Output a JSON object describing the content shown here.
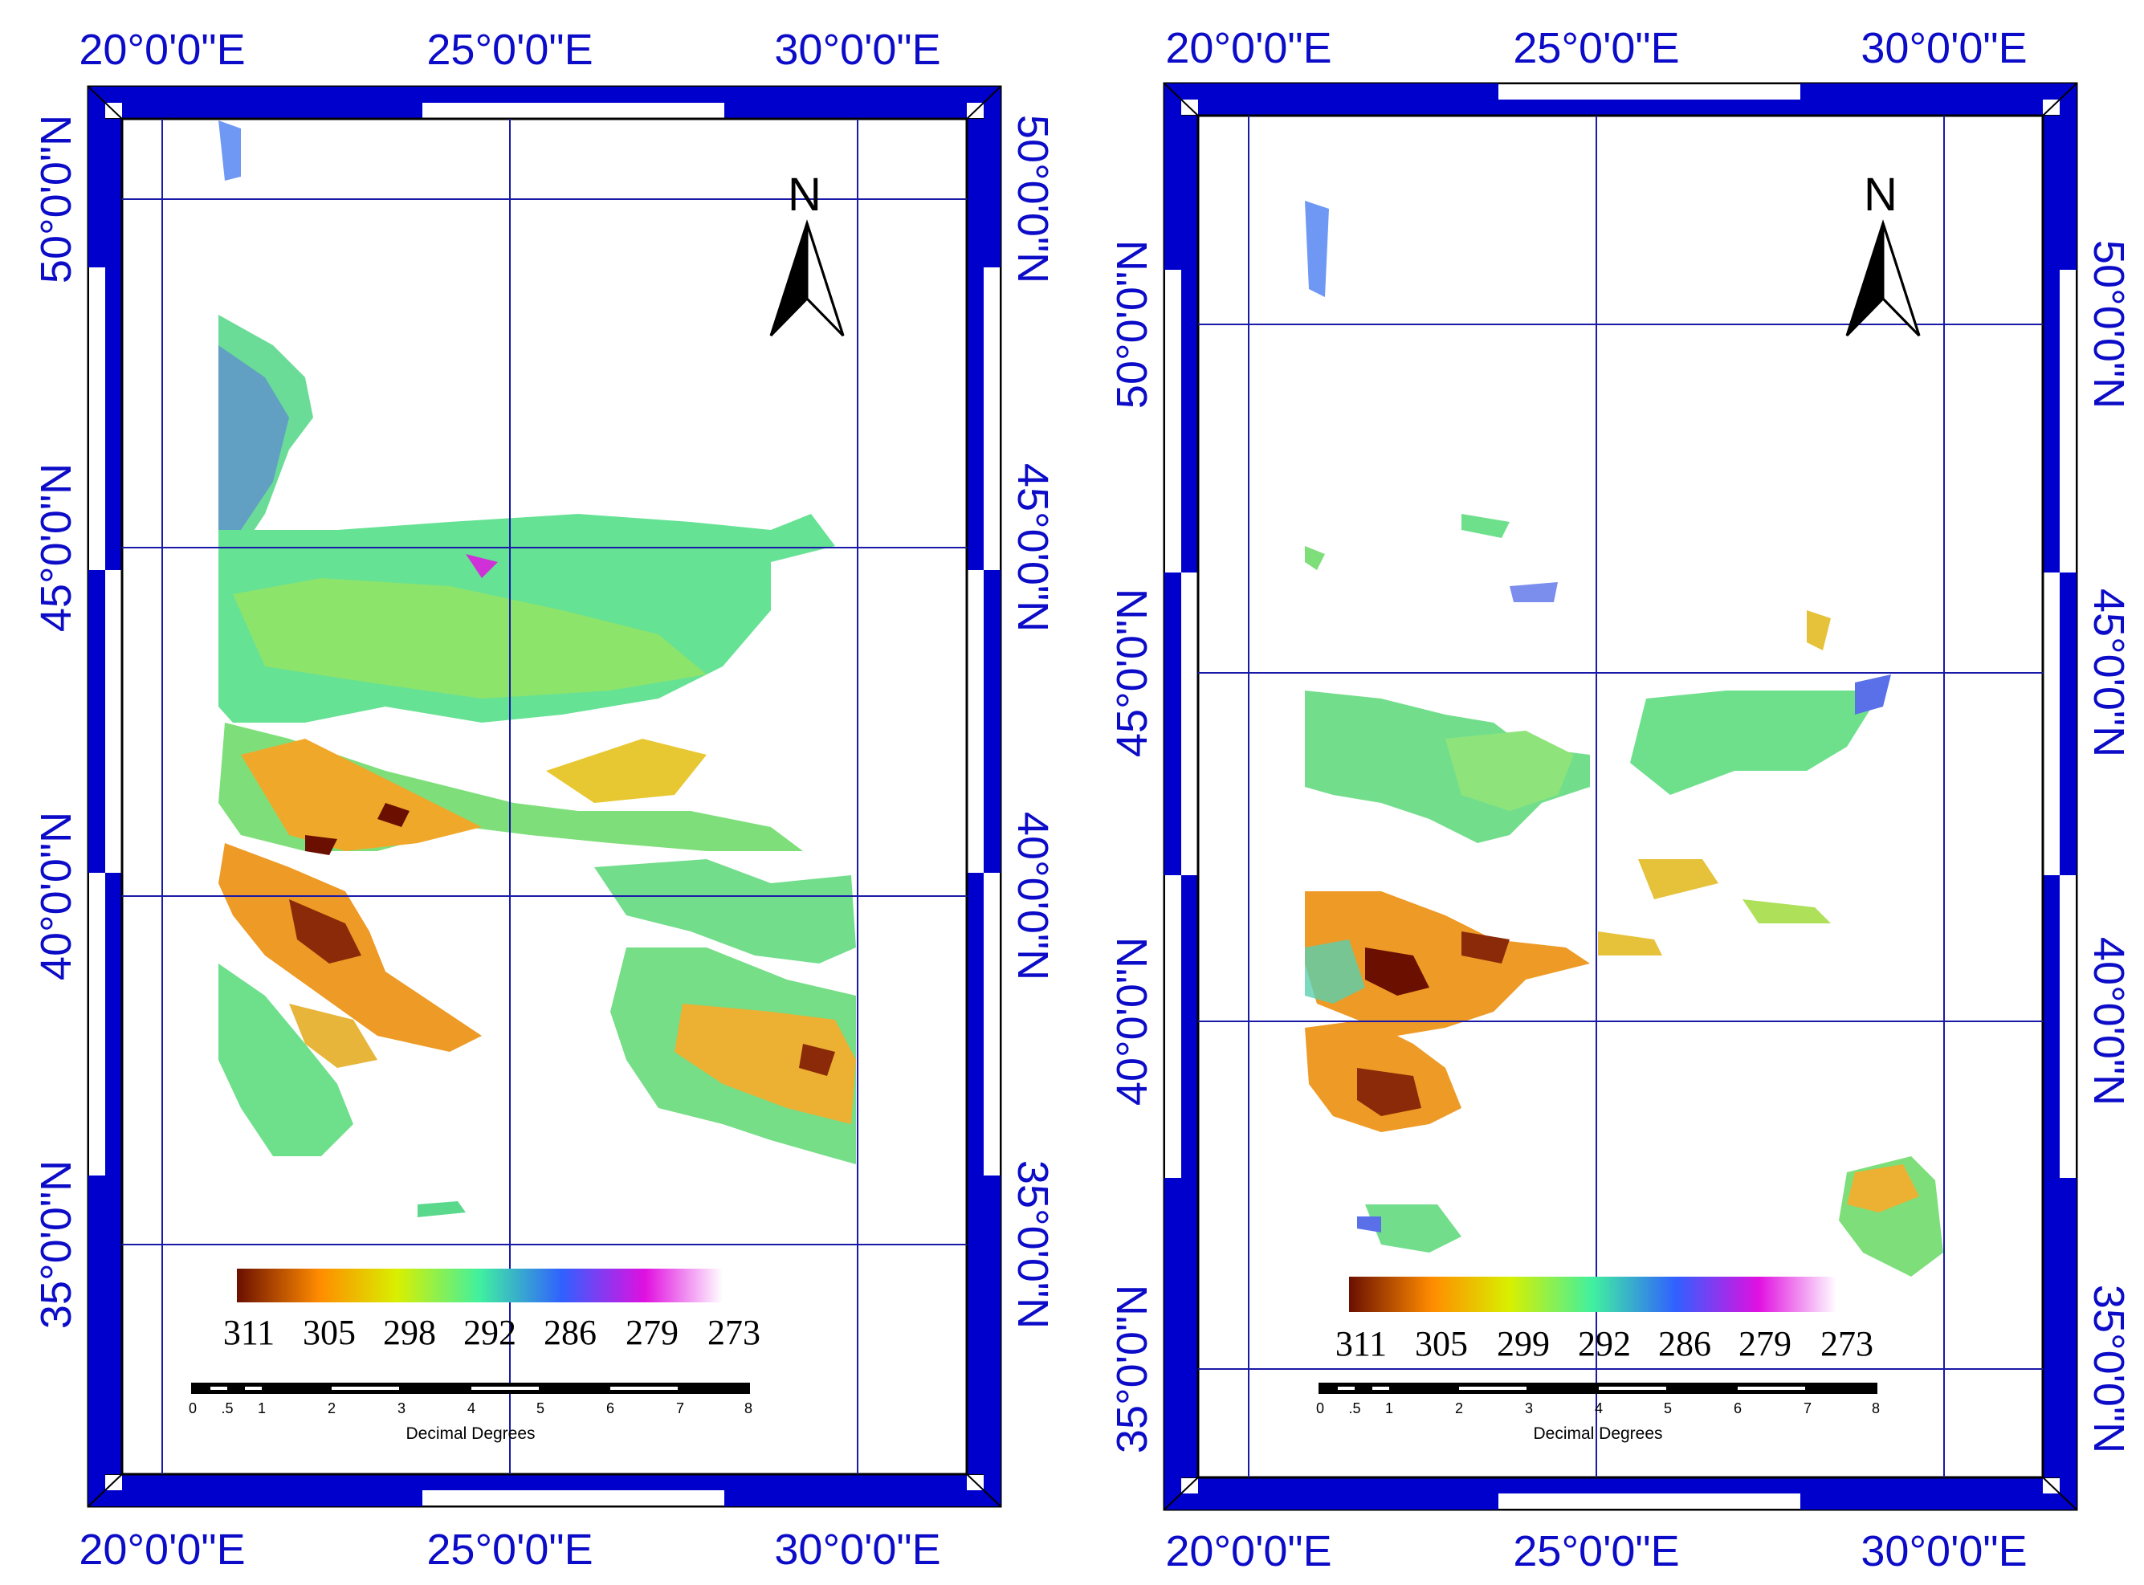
{
  "maps": [
    {
      "id": "left",
      "top_labels": [
        "20°0'0\"E",
        "25°0'0\"E",
        "30°0'0\"E"
      ],
      "bottom_labels": [
        "20°0'0\"E",
        "25°0'0\"E",
        "30°0'0\"E"
      ],
      "left_labels": [
        "50°0'0\"N",
        "45°0'0\"N",
        "40°0'0\"N",
        "35°0'0\"N"
      ],
      "right_labels": [
        "50°0'0\"N",
        "45°0'0\"N",
        "40°0'0\"N",
        "35°0'0\"N"
      ],
      "north_label": "N",
      "legend": {
        "ticks": [
          "311",
          "305",
          "298",
          "292",
          "286",
          "279",
          "273"
        ]
      },
      "scalebar": {
        "ticks": [
          "0",
          ".5",
          "1",
          "2",
          "3",
          "4",
          "5",
          "6",
          "7",
          "8"
        ],
        "caption": "Decimal Degrees"
      }
    },
    {
      "id": "right",
      "top_labels": [
        "20°0'0\"E",
        "25°0'0\"E",
        "30°0'0\"E"
      ],
      "bottom_labels": [
        "20°0'0\"E",
        "25°0'0\"E",
        "30°0'0\"E"
      ],
      "left_labels": [
        "50°0'0\"N",
        "45°0'0\"N",
        "40°0'0\"N",
        "35°0'0\"N"
      ],
      "right_labels": [
        "50°0'0\"N",
        "45°0'0\"N",
        "40°0'0\"N",
        "35°0'0\"N"
      ],
      "north_label": "N",
      "legend": {
        "ticks": [
          "311",
          "305",
          "299",
          "292",
          "286",
          "279",
          "273"
        ]
      },
      "scalebar": {
        "ticks": [
          "0",
          ".5",
          "1",
          "2",
          "3",
          "4",
          "5",
          "6",
          "7",
          "8"
        ],
        "caption": "Decimal Degrees"
      }
    }
  ],
  "colors": {
    "frame_blue": "#0000cd",
    "grid_blue": "#1a1aa8",
    "label_blue": "#0c0cc8",
    "colormap": [
      "#6b0f00",
      "#ff8c00",
      "#d8f000",
      "#40f0a0",
      "#3060ff",
      "#e010e0",
      "#ffffff"
    ]
  },
  "icons": {
    "north_arrow": "north-arrow-icon"
  }
}
